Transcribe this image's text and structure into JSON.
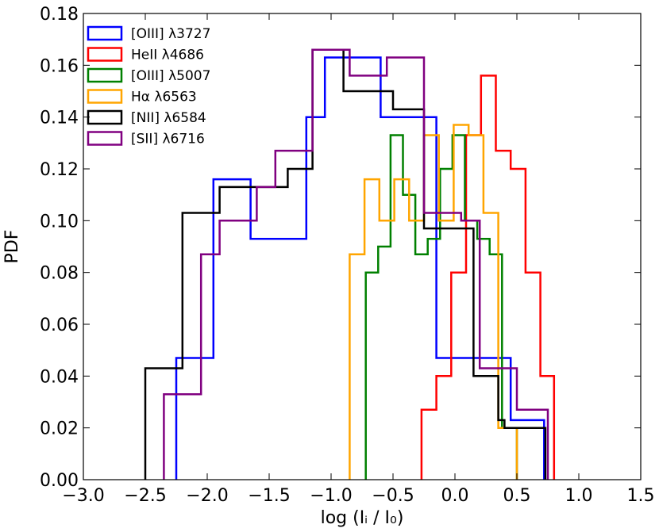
{
  "chart_data": {
    "type": "line",
    "style": "step-histogram",
    "title": "",
    "xlabel": "log (Iᵢ / I₀)",
    "ylabel": "PDF",
    "xlim": [
      -3.0,
      1.5
    ],
    "ylim": [
      0.0,
      0.18
    ],
    "xticks": [
      "−3.0",
      "−2.5",
      "−2.0",
      "−1.5",
      "−1.0",
      "−0.5",
      "0.0",
      "0.5",
      "1.0",
      "1.5"
    ],
    "xtick_values": [
      -3.0,
      -2.5,
      -2.0,
      -1.5,
      -1.0,
      -0.5,
      0.0,
      0.5,
      1.0,
      1.5
    ],
    "yticks": [
      "0.00",
      "0.02",
      "0.04",
      "0.06",
      "0.08",
      "0.10",
      "0.12",
      "0.14",
      "0.16",
      "0.18"
    ],
    "ytick_values": [
      0.0,
      0.02,
      0.04,
      0.06,
      0.08,
      0.1,
      0.12,
      0.14,
      0.16,
      0.18
    ],
    "legend_position": "top-left",
    "series": [
      {
        "name": "[OIII] λ3727",
        "color": "#0000ff",
        "edges": [
          -2.25,
          -2.1,
          -1.95,
          -1.8,
          -1.65,
          -1.5,
          -1.35,
          -1.2,
          -1.05,
          -0.9,
          -0.75,
          -0.6,
          -0.45,
          -0.3,
          -0.15,
          0.0,
          0.15,
          0.3,
          0.45,
          0.6,
          0.72
        ],
        "values": [
          0.047,
          0.047,
          0.116,
          0.116,
          0.093,
          0.093,
          0.093,
          0.14,
          0.163,
          0.163,
          0.163,
          0.14,
          0.14,
          0.14,
          0.047,
          0.047,
          0.047,
          0.047,
          0.023,
          0.023
        ]
      },
      {
        "name": "HeII  λ4686",
        "color": "#ff0000",
        "edges": [
          -0.27,
          -0.15,
          -0.03,
          0.09,
          0.21,
          0.33,
          0.45,
          0.57,
          0.69,
          0.8
        ],
        "values": [
          0.027,
          0.04,
          0.08,
          0.133,
          0.156,
          0.127,
          0.12,
          0.08,
          0.04
        ]
      },
      {
        "name": "[OIII] λ5007",
        "color": "#008000",
        "edges": [
          -0.72,
          -0.62,
          -0.52,
          -0.42,
          -0.32,
          -0.22,
          -0.12,
          -0.02,
          0.08,
          0.18,
          0.28,
          0.38,
          0.5
        ],
        "values": [
          0.08,
          0.09,
          0.133,
          0.11,
          0.087,
          0.093,
          0.12,
          0.133,
          0.1,
          0.093,
          0.087,
          0.02
        ]
      },
      {
        "name": "Hα    λ6563",
        "color": "#ffa500",
        "edges": [
          -0.85,
          -0.73,
          -0.61,
          -0.49,
          -0.37,
          -0.25,
          -0.13,
          -0.01,
          0.11,
          0.23,
          0.35,
          0.5
        ],
        "values": [
          0.087,
          0.116,
          0.1,
          0.116,
          0.1,
          0.133,
          0.1,
          0.137,
          0.133,
          0.103,
          0.02
        ]
      },
      {
        "name": "[NII] λ6584",
        "color": "#000000",
        "edges": [
          -2.5,
          -2.2,
          -1.9,
          -1.6,
          -1.35,
          -1.15,
          -0.9,
          -0.5,
          -0.25,
          0.15,
          0.35,
          0.4,
          0.73
        ],
        "values": [
          0.043,
          0.103,
          0.113,
          0.113,
          0.12,
          0.166,
          0.15,
          0.143,
          0.097,
          0.04,
          0.023,
          0.02
        ]
      },
      {
        "name": "[SII] λ6716",
        "color": "#800080",
        "edges": [
          -2.35,
          -2.2,
          -2.05,
          -1.9,
          -1.75,
          -1.6,
          -1.45,
          -1.3,
          -1.15,
          -1.0,
          -0.85,
          -0.7,
          -0.55,
          -0.4,
          -0.25,
          -0.1,
          0.05,
          0.2,
          0.35,
          0.5,
          0.6,
          0.75
        ],
        "values": [
          0.033,
          0.033,
          0.087,
          0.1,
          0.1,
          0.113,
          0.127,
          0.127,
          0.166,
          0.166,
          0.156,
          0.156,
          0.163,
          0.163,
          0.103,
          0.103,
          0.1,
          0.043,
          0.043,
          0.027,
          0.027
        ]
      }
    ]
  }
}
